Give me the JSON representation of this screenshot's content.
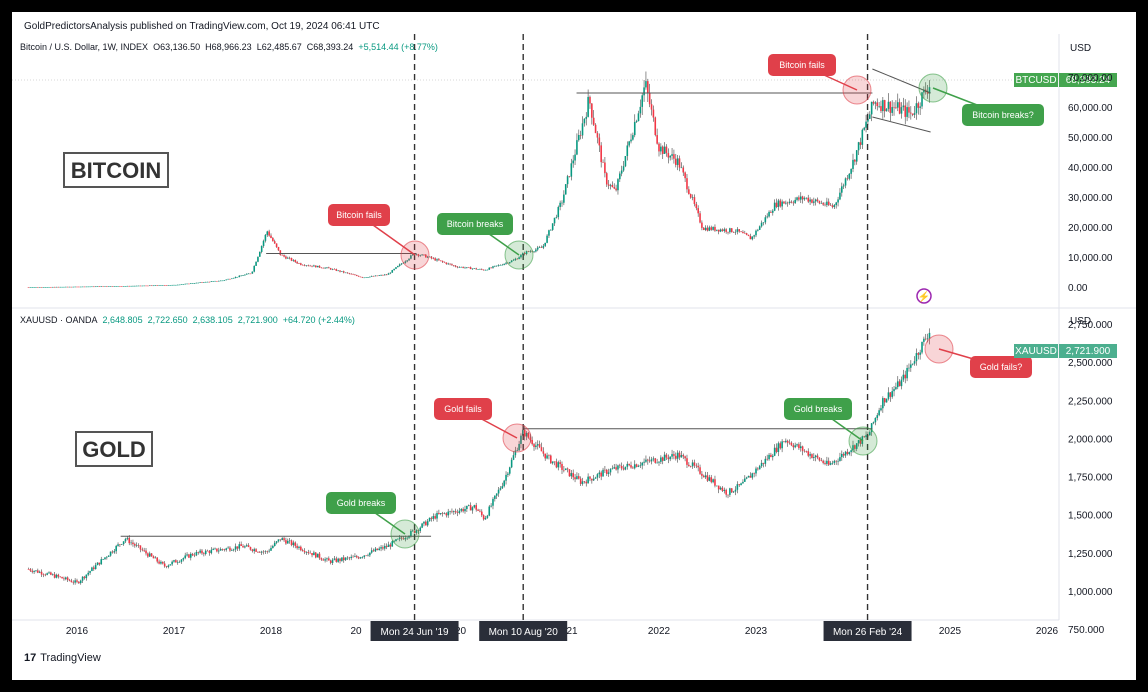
{
  "header": {
    "published_text": "GoldPredictorsAnalysis published on TradingView.com, Oct 19, 2024 06:41 UTC"
  },
  "footer": {
    "brand_text": "TradingView",
    "logo_glyph": "17"
  },
  "top_panel": {
    "symbol_line": "Bitcoin / U.S. Dollar, 1W, INDEX",
    "ohlc": {
      "open": "O63,136.50",
      "high": "H68,966.23",
      "low": "L62,485.67",
      "close": "C68,393.24",
      "change": "+5,514.44 (+8.77%)"
    },
    "currency": "USD",
    "title_box": "BITCOIN",
    "price_tag": {
      "symbol": "BTCUSD",
      "value": "68,393.24"
    },
    "y_ticks": [
      "70,000.00",
      "60,000.00",
      "50,000.00",
      "40,000.00",
      "30,000.00",
      "20,000.00",
      "10,000.00",
      "0.00"
    ],
    "callouts": [
      {
        "text": "Bitcoin fails",
        "kind": "fail"
      },
      {
        "text": "Bitcoin breaks",
        "kind": "break"
      },
      {
        "text": "Bitcoin fails",
        "kind": "fail"
      },
      {
        "text": "Bitcoin breaks?",
        "kind": "break"
      }
    ]
  },
  "bottom_panel": {
    "symbol_line": "XAUUSD · OANDA",
    "ohlc": {
      "open": "2,648.805",
      "high": "2,722.650",
      "low": "2,638.105",
      "close": "2,721.900",
      "change": "+64.720 (+2.44%)"
    },
    "currency": "USD",
    "title_box": "GOLD",
    "price_tag": {
      "symbol": "XAUUSD",
      "value": "2,721.900"
    },
    "y_ticks": [
      "2,750.000",
      "2,500.000",
      "2,250.000",
      "2,000.000",
      "1,750.000",
      "1,500.000",
      "1,250.000",
      "1,000.000",
      "750.000"
    ],
    "callouts": [
      {
        "text": "Gold breaks",
        "kind": "break"
      },
      {
        "text": "Gold fails",
        "kind": "fail"
      },
      {
        "text": "Gold breaks",
        "kind": "break"
      },
      {
        "text": "Gold fails?",
        "kind": "fail"
      }
    ]
  },
  "x_axis": {
    "labels": [
      "2016",
      "2017",
      "2018",
      "20",
      "2020",
      "21",
      "2022",
      "2023",
      "2025",
      "2026"
    ],
    "date_flags": [
      "Mon 24 Jun '19",
      "Mon 10 Aug '20",
      "Mon 26 Feb '24"
    ]
  },
  "colors": {
    "fail": "#e0404a",
    "break": "#3fa04a",
    "up": "#089981",
    "down": "#f23645",
    "btc_tag": "#45a650",
    "xau_tag": "#4caf8f"
  },
  "chart_data": [
    {
      "type": "line",
      "title": "Bitcoin / U.S. Dollar, 1W, INDEX",
      "x": [
        2015.5,
        2016.0,
        2016.5,
        2017.0,
        2017.5,
        2017.8,
        2017.96,
        2018.1,
        2018.3,
        2018.6,
        2018.95,
        2019.2,
        2019.48,
        2019.6,
        2019.9,
        2020.2,
        2020.5,
        2020.62,
        2020.8,
        2021.0,
        2021.28,
        2021.45,
        2021.55,
        2021.86,
        2022.0,
        2022.2,
        2022.45,
        2022.8,
        2022.95,
        2023.2,
        2023.5,
        2023.8,
        2024.0,
        2024.16,
        2024.22,
        2024.45,
        2024.6,
        2024.8
      ],
      "y": [
        250,
        430,
        650,
        1000,
        2500,
        5000,
        19000,
        11000,
        8000,
        6500,
        3500,
        4500,
        11500,
        10500,
        7200,
        6000,
        9200,
        11800,
        13500,
        29000,
        63000,
        36000,
        32000,
        68000,
        47000,
        42000,
        20000,
        19000,
        16500,
        28000,
        30000,
        27000,
        42000,
        57000,
        62000,
        60000,
        58000,
        68393
      ],
      "ylim": [
        0,
        75000
      ],
      "resistance_levels": [
        {
          "y": 11500,
          "x_start": 2017.95,
          "x_end": 2019.5
        },
        {
          "y": 65000,
          "x_start": 2021.15,
          "x_end": 2024.2
        }
      ],
      "channel": {
        "upper": [
          [
            2024.2,
            73000
          ],
          [
            2024.8,
            65000
          ]
        ],
        "lower": [
          [
            2024.2,
            57000
          ],
          [
            2024.8,
            52000
          ]
        ]
      }
    },
    {
      "type": "line",
      "title": "XAUUSD · OANDA",
      "x": [
        2015.5,
        2015.8,
        2016.0,
        2016.5,
        2016.9,
        2017.2,
        2017.7,
        2017.95,
        2018.1,
        2018.6,
        2018.9,
        2019.2,
        2019.48,
        2019.7,
        2020.1,
        2020.2,
        2020.4,
        2020.6,
        2020.85,
        2021.2,
        2021.5,
        2022.2,
        2022.7,
        2022.85,
        2023.3,
        2023.75,
        2024.16,
        2024.3,
        2024.5,
        2024.8
      ],
      "y": [
        1150,
        1100,
        1060,
        1350,
        1170,
        1250,
        1300,
        1260,
        1350,
        1200,
        1230,
        1300,
        1400,
        1500,
        1560,
        1480,
        1730,
        2050,
        1880,
        1720,
        1800,
        1900,
        1650,
        1700,
        2000,
        1830,
        2030,
        2250,
        2380,
        2722
      ],
      "ylim": [
        750,
        2800
      ],
      "resistance_levels": [
        {
          "y": 1365,
          "x_start": 2016.45,
          "x_end": 2019.65
        },
        {
          "y": 2070,
          "x_start": 2020.6,
          "x_end": 2024.2
        }
      ]
    }
  ]
}
